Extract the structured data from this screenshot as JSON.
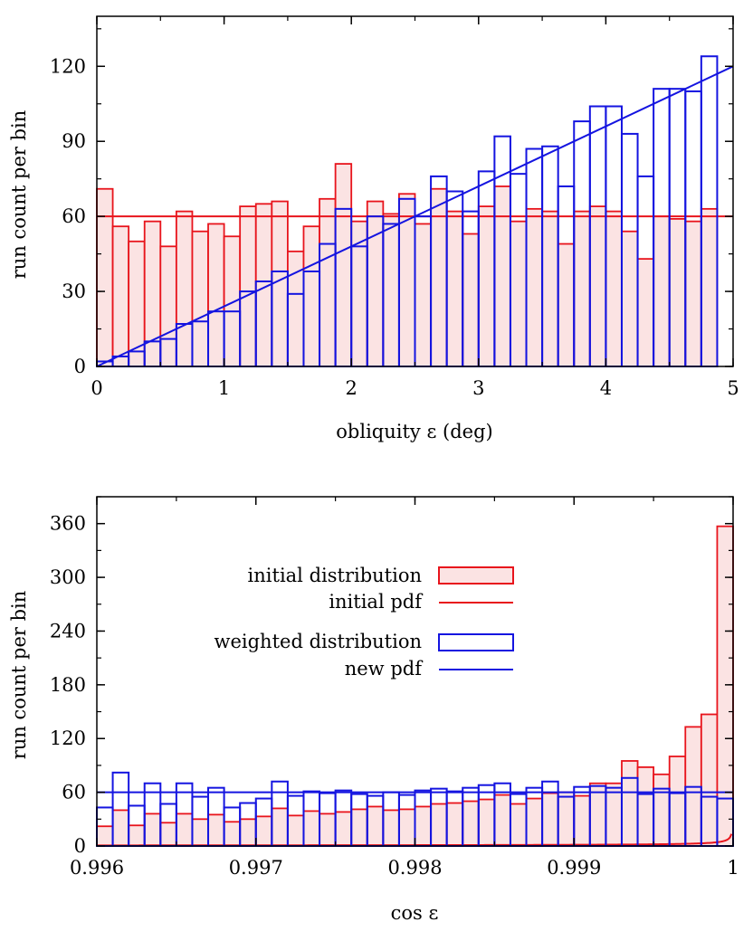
{
  "chart_data": [
    {
      "type": "histogram",
      "xlabel": "obliquity ε (deg)",
      "ylabel": "run count per bin",
      "xlim": [
        0,
        5
      ],
      "ylim": [
        0,
        140
      ],
      "xticks": [
        "0",
        "1",
        "2",
        "3",
        "4",
        "5"
      ],
      "yticks": [
        "0",
        "30",
        "60",
        "90",
        "120"
      ],
      "bin_width": 0.125,
      "grid": false,
      "series": [
        {
          "name": "initial distribution",
          "style": "filled",
          "color": "#e8141c",
          "fill": "#fbe3e3",
          "values": [
            71,
            56,
            50,
            58,
            48,
            62,
            54,
            57,
            52,
            64,
            65,
            66,
            46,
            56,
            67,
            81,
            58,
            66,
            61,
            69,
            57,
            71,
            62,
            53,
            64,
            72,
            58,
            63,
            62,
            49,
            62,
            64,
            62,
            54,
            43,
            60,
            59,
            58,
            63
          ]
        },
        {
          "name": "initial pdf",
          "style": "line",
          "color": "#e8141c",
          "y": 60
        },
        {
          "name": "weighted distribution",
          "style": "outline",
          "color": "#1414e0",
          "values": [
            2,
            4,
            6,
            10,
            11,
            17,
            18,
            22,
            22,
            30,
            34,
            38,
            29,
            38,
            49,
            63,
            48,
            60,
            57,
            67,
            60,
            76,
            70,
            62,
            78,
            92,
            77,
            87,
            88,
            72,
            98,
            104,
            104,
            93,
            76,
            111,
            111,
            110,
            124
          ]
        },
        {
          "name": "new pdf",
          "style": "line",
          "color": "#1414e0",
          "x": [
            0,
            5
          ],
          "y": [
            0,
            120
          ]
        }
      ]
    },
    {
      "type": "histogram",
      "xlabel": "cos ε",
      "ylabel": "run count per bin",
      "xlim": [
        0.996,
        1
      ],
      "ylim": [
        0,
        390
      ],
      "xticks": [
        "0.996",
        "0.997",
        "0.998",
        "0.999",
        "1"
      ],
      "yticks": [
        "0",
        "60",
        "120",
        "180",
        "240",
        "300",
        "360"
      ],
      "bin_width": 0.0001,
      "grid": false,
      "series": [
        {
          "name": "initial distribution",
          "style": "filled",
          "color": "#e8141c",
          "fill": "#fbe3e3",
          "values": [
            22,
            40,
            23,
            36,
            26,
            36,
            30,
            35,
            27,
            30,
            33,
            42,
            34,
            39,
            36,
            38,
            41,
            44,
            40,
            41,
            44,
            47,
            48,
            50,
            52,
            57,
            47,
            53,
            59,
            60,
            56,
            70,
            70,
            95,
            88,
            80,
            100,
            133,
            147,
            357
          ]
        },
        {
          "name": "initial pdf",
          "style": "line",
          "color": "#e8141c",
          "note": "curve"
        },
        {
          "name": "weighted distribution",
          "style": "outline",
          "color": "#1414e0",
          "values": [
            43,
            82,
            45,
            70,
            47,
            70,
            55,
            65,
            43,
            48,
            53,
            72,
            56,
            61,
            59,
            62,
            58,
            56,
            60,
            57,
            62,
            64,
            61,
            65,
            68,
            70,
            58,
            65,
            72,
            55,
            66,
            67,
            65,
            76,
            58,
            64,
            59,
            66,
            55,
            53
          ]
        },
        {
          "name": "new pdf",
          "style": "line",
          "color": "#1414e0",
          "y": 60
        }
      ]
    }
  ]
}
